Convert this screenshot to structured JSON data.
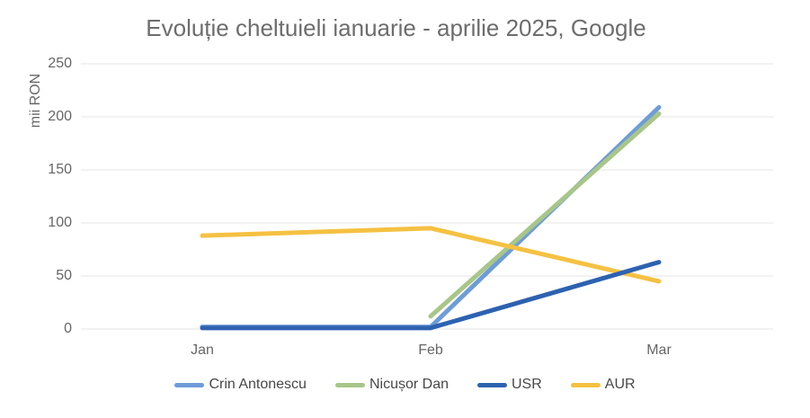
{
  "title": "Evoluție cheltuieli ianuarie - aprilie 2025, Google",
  "y_axis": {
    "label": "mii RON",
    "ticks": [
      "250",
      "200",
      "150",
      "100",
      "50",
      "0"
    ]
  },
  "x_axis": {
    "labels": [
      "Jan",
      "Feb",
      "Mar"
    ]
  },
  "chart_data": {
    "type": "line",
    "title": "Evoluție cheltuieli ianuarie - aprilie 2025, Google",
    "xlabel": "",
    "ylabel": "mii RON",
    "ylim": [
      0,
      250
    ],
    "y_tick_step": 50,
    "grid": true,
    "legend_position": "bottom",
    "categories": [
      "Jan",
      "Feb",
      "Mar"
    ],
    "series": [
      {
        "name": "Crin Antonescu",
        "color": "#6e9cd8",
        "values": [
          2,
          2,
          209
        ]
      },
      {
        "name": "Nicușor Dan",
        "color": "#a8c688",
        "values": [
          null,
          12,
          203
        ]
      },
      {
        "name": "USR",
        "color": "#2d62b0",
        "values": [
          1,
          1,
          63
        ]
      },
      {
        "name": "AUR",
        "color": "#f5c142",
        "values": [
          88,
          95,
          45
        ]
      }
    ]
  },
  "colors": {
    "gridline": "#e6e6e6",
    "title_text": "#6d6d6d",
    "axis_text": "#666666",
    "legend_text": "#484848"
  }
}
